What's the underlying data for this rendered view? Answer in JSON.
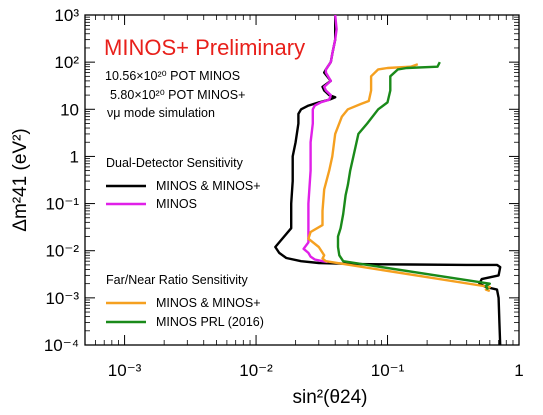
{
  "chart_data": {
    "type": "line",
    "title": "MINOS+ Preliminary",
    "xlabel": "sin²(θ24)",
    "ylabel": "Δm²41 (eV²)",
    "xscale": "log",
    "yscale": "log",
    "xlim": [
      0.0005,
      1
    ],
    "ylim": [
      0.0001,
      1000
    ],
    "x_ticks": [
      "10⁻³",
      "10⁻²",
      "10⁻¹",
      "1"
    ],
    "y_ticks": [
      "10⁻⁴",
      "10⁻³",
      "10⁻²",
      "10⁻¹",
      "1",
      "10",
      "10²",
      "10³"
    ],
    "annotations": [
      "10.56×10²⁰ POT MINOS",
      "5.80×10²⁰ POT MINOS+",
      "νμ mode simulation"
    ],
    "legend_groups": [
      {
        "heading": "Dual-Detector Sensitivity",
        "entries": [
          "MINOS & MINOS+",
          "MINOS"
        ]
      },
      {
        "heading": "Far/Near Ratio Sensitivity",
        "entries": [
          "MINOS & MINOS+",
          "MINOS PRL (2016)"
        ]
      }
    ],
    "series": [
      {
        "name": "MINOS & MINOS+",
        "group": "Dual-Detector Sensitivity",
        "color": "#000000",
        "points": [
          [
            0.04,
            1000
          ],
          [
            0.04,
            500
          ],
          [
            0.04,
            300
          ],
          [
            0.038,
            150
          ],
          [
            0.037,
            100
          ],
          [
            0.034,
            70
          ],
          [
            0.033,
            60
          ],
          [
            0.037,
            40
          ],
          [
            0.032,
            30
          ],
          [
            0.033,
            25
          ],
          [
            0.036,
            20
          ],
          [
            0.04,
            18
          ],
          [
            0.036,
            16
          ],
          [
            0.03,
            14
          ],
          [
            0.025,
            12
          ],
          [
            0.022,
            10
          ],
          [
            0.021,
            8
          ],
          [
            0.021,
            5
          ],
          [
            0.02,
            2
          ],
          [
            0.019,
            1
          ],
          [
            0.019,
            0.3
          ],
          [
            0.0185,
            0.1
          ],
          [
            0.0185,
            0.03
          ],
          [
            0.015,
            0.015
          ],
          [
            0.014,
            0.012
          ],
          [
            0.015,
            0.009
          ],
          [
            0.017,
            0.007
          ],
          [
            0.022,
            0.006
          ],
          [
            0.03,
            0.0055
          ],
          [
            0.06,
            0.0052
          ],
          [
            0.15,
            0.0051
          ],
          [
            0.4,
            0.005
          ],
          [
            0.68,
            0.005
          ],
          [
            0.72,
            0.0045
          ],
          [
            0.7,
            0.003
          ],
          [
            0.52,
            0.0025
          ],
          [
            0.5,
            0.002
          ],
          [
            0.56,
            0.0017
          ],
          [
            0.68,
            0.0015
          ],
          [
            0.7,
            0.001
          ],
          [
            0.71,
            0.0003
          ],
          [
            0.72,
            0.0001
          ]
        ]
      },
      {
        "name": "MINOS",
        "group": "Dual-Detector Sensitivity",
        "color": "#e020e8",
        "points": [
          [
            0.04,
            1000
          ],
          [
            0.041,
            500
          ],
          [
            0.04,
            300
          ],
          [
            0.038,
            150
          ],
          [
            0.037,
            100
          ],
          [
            0.034,
            70
          ],
          [
            0.034,
            60
          ],
          [
            0.037,
            40
          ],
          [
            0.033,
            30
          ],
          [
            0.034,
            25
          ],
          [
            0.037,
            20
          ],
          [
            0.036,
            16
          ],
          [
            0.031,
            14
          ],
          [
            0.028,
            12
          ],
          [
            0.027,
            10
          ],
          [
            0.027,
            5
          ],
          [
            0.026,
            2
          ],
          [
            0.026,
            0.5
          ],
          [
            0.025,
            0.1
          ],
          [
            0.025,
            0.03
          ],
          [
            0.025,
            0.015
          ],
          [
            0.023,
            0.011
          ],
          [
            0.025,
            0.009
          ],
          [
            0.026,
            0.0075
          ],
          [
            0.028,
            0.0065
          ],
          [
            0.032,
            0.006
          ],
          [
            0.035,
            0.0058
          ]
        ]
      },
      {
        "name": "MINOS & MINOS+",
        "group": "Far/Near Ratio Sensitivity",
        "color": "#f5a020",
        "points": [
          [
            0.17,
            90
          ],
          [
            0.15,
            80
          ],
          [
            0.1,
            75
          ],
          [
            0.085,
            70
          ],
          [
            0.075,
            50
          ],
          [
            0.075,
            25
          ],
          [
            0.072,
            15
          ],
          [
            0.063,
            13
          ],
          [
            0.05,
            10
          ],
          [
            0.045,
            7
          ],
          [
            0.04,
            3
          ],
          [
            0.038,
            1
          ],
          [
            0.036,
            0.5
          ],
          [
            0.033,
            0.2
          ],
          [
            0.032,
            0.07
          ],
          [
            0.032,
            0.035
          ],
          [
            0.026,
            0.025
          ],
          [
            0.025,
            0.018
          ],
          [
            0.03,
            0.012
          ],
          [
            0.033,
            0.008
          ],
          [
            0.032,
            0.0068
          ],
          [
            0.034,
            0.006
          ],
          [
            0.6,
            0.0017
          ],
          [
            0.56,
            0.0015
          ],
          [
            0.6,
            0.0014
          ]
        ]
      },
      {
        "name": "MINOS PRL (2016)",
        "group": "Far/Near Ratio Sensitivity",
        "color": "#1a8a1a",
        "points": [
          [
            0.25,
            100
          ],
          [
            0.24,
            80
          ],
          [
            0.14,
            75
          ],
          [
            0.12,
            70
          ],
          [
            0.105,
            50
          ],
          [
            0.105,
            25
          ],
          [
            0.1,
            14
          ],
          [
            0.085,
            10
          ],
          [
            0.07,
            5
          ],
          [
            0.06,
            3
          ],
          [
            0.055,
            1
          ],
          [
            0.052,
            0.5
          ],
          [
            0.05,
            0.25
          ],
          [
            0.048,
            0.15
          ],
          [
            0.046,
            0.06
          ],
          [
            0.044,
            0.03
          ],
          [
            0.042,
            0.02
          ],
          [
            0.042,
            0.012
          ],
          [
            0.043,
            0.008
          ],
          [
            0.046,
            0.006
          ],
          [
            0.6,
            0.002
          ],
          [
            0.56,
            0.0018
          ],
          [
            0.58,
            0.0015
          ]
        ]
      }
    ]
  }
}
